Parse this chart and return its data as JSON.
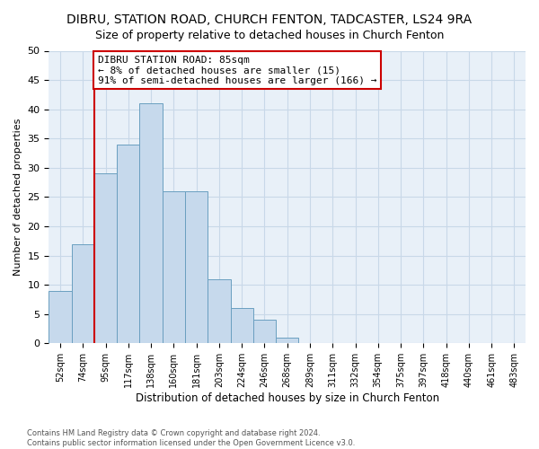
{
  "title": "DIBRU, STATION ROAD, CHURCH FENTON, TADCASTER, LS24 9RA",
  "subtitle": "Size of property relative to detached houses in Church Fenton",
  "xlabel": "Distribution of detached houses by size in Church Fenton",
  "ylabel": "Number of detached properties",
  "footer_line1": "Contains HM Land Registry data © Crown copyright and database right 2024.",
  "footer_line2": "Contains public sector information licensed under the Open Government Licence v3.0.",
  "annotation_title": "DIBRU STATION ROAD: 85sqm",
  "annotation_line1": "← 8% of detached houses are smaller (15)",
  "annotation_line2": "91% of semi-detached houses are larger (166) →",
  "bar_categories": [
    "52sqm",
    "74sqm",
    "95sqm",
    "117sqm",
    "138sqm",
    "160sqm",
    "181sqm",
    "203sqm",
    "224sqm",
    "246sqm",
    "268sqm",
    "289sqm",
    "311sqm",
    "332sqm",
    "354sqm",
    "375sqm",
    "397sqm",
    "418sqm",
    "440sqm",
    "461sqm",
    "483sqm"
  ],
  "bar_values": [
    9,
    17,
    29,
    34,
    41,
    26,
    26,
    11,
    6,
    4,
    1,
    0,
    0,
    0,
    0,
    0,
    0,
    0,
    0,
    0,
    0
  ],
  "bar_color": "#c6d9ec",
  "bar_edge_color": "#6a9fc0",
  "vline_color": "#cc0000",
  "vline_x_index": 1.5,
  "annotation_box_color": "#cc0000",
  "ylim": [
    0,
    50
  ],
  "yticks": [
    0,
    5,
    10,
    15,
    20,
    25,
    30,
    35,
    40,
    45,
    50
  ],
  "grid_color": "#c8d8e8",
  "plot_bg_color": "#e8f0f8",
  "bg_color": "#ffffff",
  "title_fontsize": 10,
  "annotation_fontsize": 8
}
